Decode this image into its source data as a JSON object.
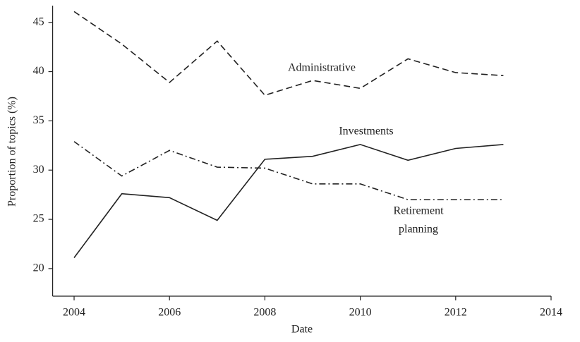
{
  "chart_data": {
    "type": "line",
    "x": [
      2004,
      2005,
      2006,
      2007,
      2008,
      2009,
      2010,
      2011,
      2012,
      2013
    ],
    "series": [
      {
        "name": "Administrative",
        "color": "#222222",
        "dash": "9,5",
        "values": [
          46.1,
          42.8,
          38.9,
          43.1,
          37.6,
          39.1,
          38.3,
          41.3,
          39.9,
          39.6
        ]
      },
      {
        "name": "Investments",
        "color": "#222222",
        "dash": "none",
        "values": [
          21.1,
          27.6,
          27.2,
          24.9,
          31.1,
          31.4,
          32.6,
          31.0,
          32.2,
          32.6
        ]
      },
      {
        "name": "Retirement planning",
        "color": "#222222",
        "dash": "9,4,2,4",
        "values": [
          32.9,
          29.4,
          32.0,
          30.3,
          30.2,
          28.6,
          28.6,
          27.0,
          27.0,
          27.0
        ]
      }
    ],
    "annotations": [
      "Administrative",
      "Investments",
      "Retirement",
      "planning"
    ],
    "xlabel": "Date",
    "ylabel": "Proportion of topics (%)",
    "xlim": [
      2003.55,
      2014
    ],
    "xticks": [
      2004,
      2006,
      2008,
      2010,
      2012,
      2014
    ],
    "ylim": [
      17.2,
      46.7
    ],
    "yticks": [
      20,
      25,
      30,
      35,
      40,
      45
    ]
  }
}
